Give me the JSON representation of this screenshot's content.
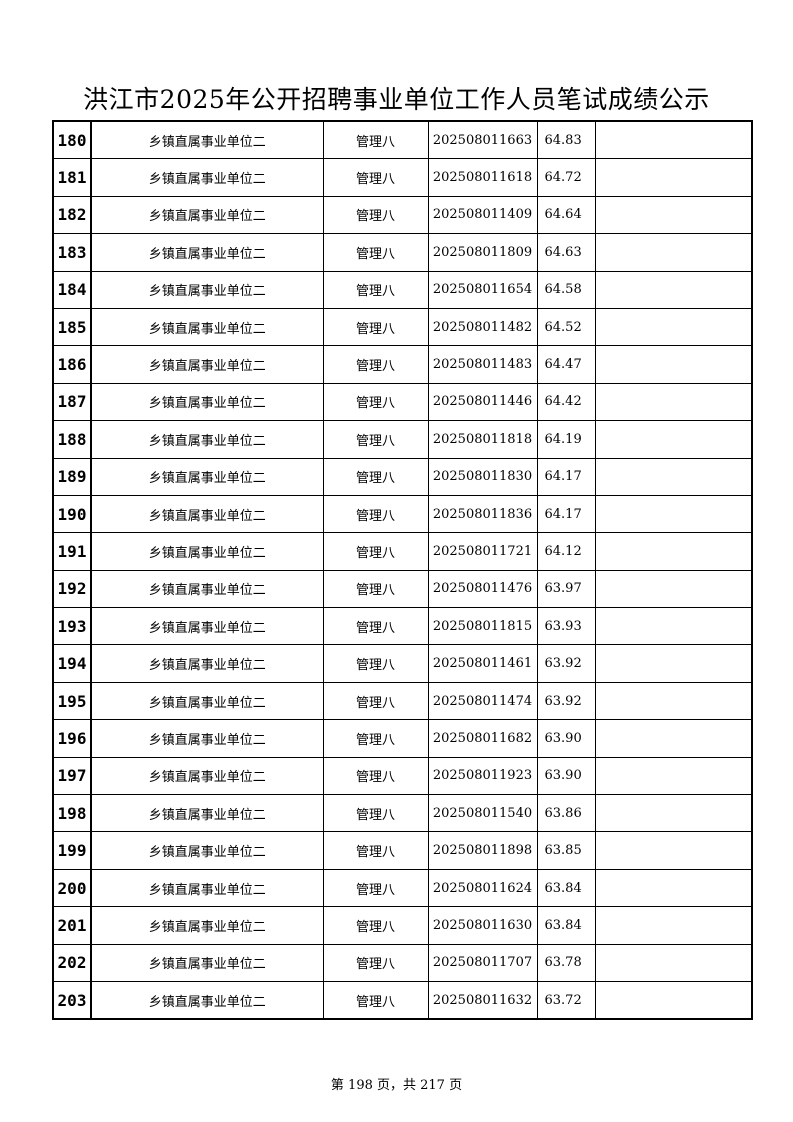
{
  "title": "洪江市2025年公开招聘事业单位工作人员笔试成绩公示",
  "rows": [
    {
      "no": "180",
      "unit": "乡镇直属事业单位二",
      "position": "管理八",
      "ticket": "202508011663",
      "score": "64.83",
      "note": ""
    },
    {
      "no": "181",
      "unit": "乡镇直属事业单位二",
      "position": "管理八",
      "ticket": "202508011618",
      "score": "64.72",
      "note": ""
    },
    {
      "no": "182",
      "unit": "乡镇直属事业单位二",
      "position": "管理八",
      "ticket": "202508011409",
      "score": "64.64",
      "note": ""
    },
    {
      "no": "183",
      "unit": "乡镇直属事业单位二",
      "position": "管理八",
      "ticket": "202508011809",
      "score": "64.63",
      "note": ""
    },
    {
      "no": "184",
      "unit": "乡镇直属事业单位二",
      "position": "管理八",
      "ticket": "202508011654",
      "score": "64.58",
      "note": ""
    },
    {
      "no": "185",
      "unit": "乡镇直属事业单位二",
      "position": "管理八",
      "ticket": "202508011482",
      "score": "64.52",
      "note": ""
    },
    {
      "no": "186",
      "unit": "乡镇直属事业单位二",
      "position": "管理八",
      "ticket": "202508011483",
      "score": "64.47",
      "note": ""
    },
    {
      "no": "187",
      "unit": "乡镇直属事业单位二",
      "position": "管理八",
      "ticket": "202508011446",
      "score": "64.42",
      "note": ""
    },
    {
      "no": "188",
      "unit": "乡镇直属事业单位二",
      "position": "管理八",
      "ticket": "202508011818",
      "score": "64.19",
      "note": ""
    },
    {
      "no": "189",
      "unit": "乡镇直属事业单位二",
      "position": "管理八",
      "ticket": "202508011830",
      "score": "64.17",
      "note": ""
    },
    {
      "no": "190",
      "unit": "乡镇直属事业单位二",
      "position": "管理八",
      "ticket": "202508011836",
      "score": "64.17",
      "note": ""
    },
    {
      "no": "191",
      "unit": "乡镇直属事业单位二",
      "position": "管理八",
      "ticket": "202508011721",
      "score": "64.12",
      "note": ""
    },
    {
      "no": "192",
      "unit": "乡镇直属事业单位二",
      "position": "管理八",
      "ticket": "202508011476",
      "score": "63.97",
      "note": ""
    },
    {
      "no": "193",
      "unit": "乡镇直属事业单位二",
      "position": "管理八",
      "ticket": "202508011815",
      "score": "63.93",
      "note": ""
    },
    {
      "no": "194",
      "unit": "乡镇直属事业单位二",
      "position": "管理八",
      "ticket": "202508011461",
      "score": "63.92",
      "note": ""
    },
    {
      "no": "195",
      "unit": "乡镇直属事业单位二",
      "position": "管理八",
      "ticket": "202508011474",
      "score": "63.92",
      "note": ""
    },
    {
      "no": "196",
      "unit": "乡镇直属事业单位二",
      "position": "管理八",
      "ticket": "202508011682",
      "score": "63.90",
      "note": ""
    },
    {
      "no": "197",
      "unit": "乡镇直属事业单位二",
      "position": "管理八",
      "ticket": "202508011923",
      "score": "63.90",
      "note": ""
    },
    {
      "no": "198",
      "unit": "乡镇直属事业单位二",
      "position": "管理八",
      "ticket": "202508011540",
      "score": "63.86",
      "note": ""
    },
    {
      "no": "199",
      "unit": "乡镇直属事业单位二",
      "position": "管理八",
      "ticket": "202508011898",
      "score": "63.85",
      "note": ""
    },
    {
      "no": "200",
      "unit": "乡镇直属事业单位二",
      "position": "管理八",
      "ticket": "202508011624",
      "score": "63.84",
      "note": ""
    },
    {
      "no": "201",
      "unit": "乡镇直属事业单位二",
      "position": "管理八",
      "ticket": "202508011630",
      "score": "63.84",
      "note": ""
    },
    {
      "no": "202",
      "unit": "乡镇直属事业单位二",
      "position": "管理八",
      "ticket": "202508011707",
      "score": "63.78",
      "note": ""
    },
    {
      "no": "203",
      "unit": "乡镇直属事业单位二",
      "position": "管理八",
      "ticket": "202508011632",
      "score": "63.72",
      "note": ""
    }
  ],
  "footer": "第 198 页，共 217 页"
}
